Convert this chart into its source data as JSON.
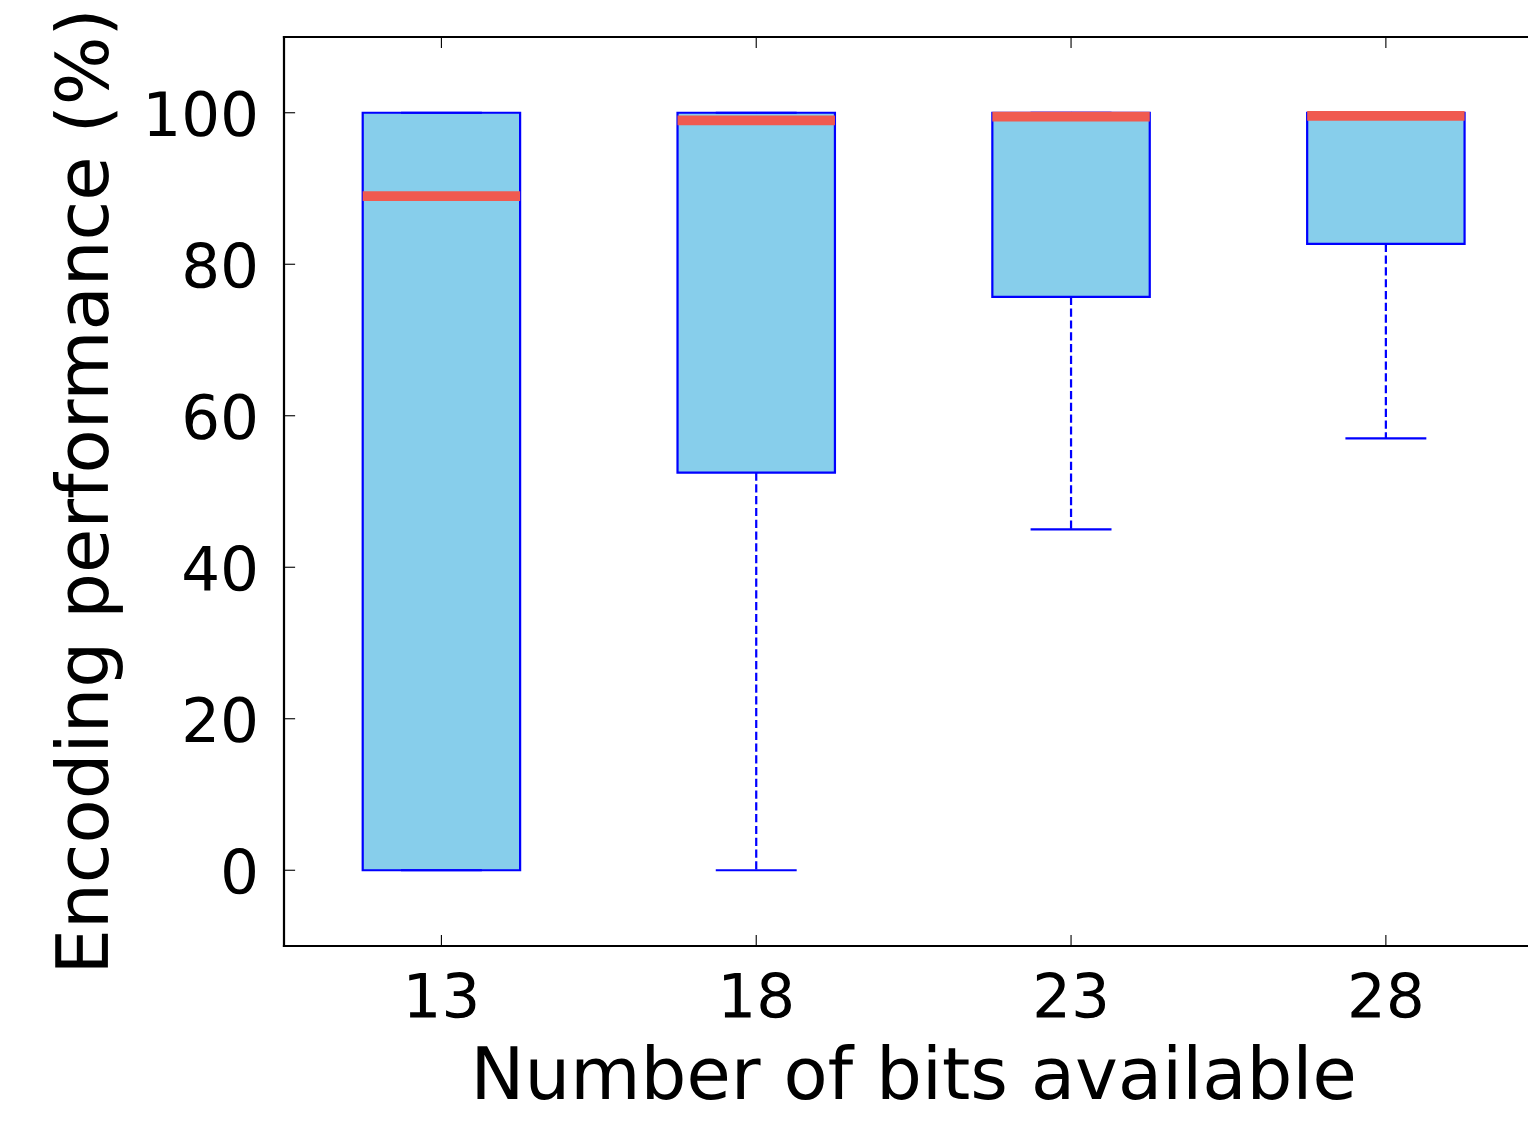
{
  "chart_data": {
    "type": "box",
    "xlabel": "Number of bits available",
    "ylabel": "Encoding performance (%)",
    "categories": [
      "13",
      "18",
      "23",
      "28"
    ],
    "boxes": [
      {
        "low": 0,
        "q1": 0,
        "median": 89,
        "q3": 100,
        "high": 100
      },
      {
        "low": 0,
        "q1": 52.5,
        "median": 99,
        "q3": 100,
        "high": 100
      },
      {
        "low": 45,
        "q1": 75.7,
        "median": 99.5,
        "q3": 100,
        "high": 100
      },
      {
        "low": 57,
        "q1": 82.7,
        "median": 99.6,
        "q3": 100,
        "high": 100
      }
    ],
    "color": "#87ceeb",
    "ylim": [
      -10,
      110
    ],
    "yticks": [
      0,
      20,
      40,
      60,
      80,
      100
    ],
    "grid": false,
    "line_style": "dashed"
  }
}
